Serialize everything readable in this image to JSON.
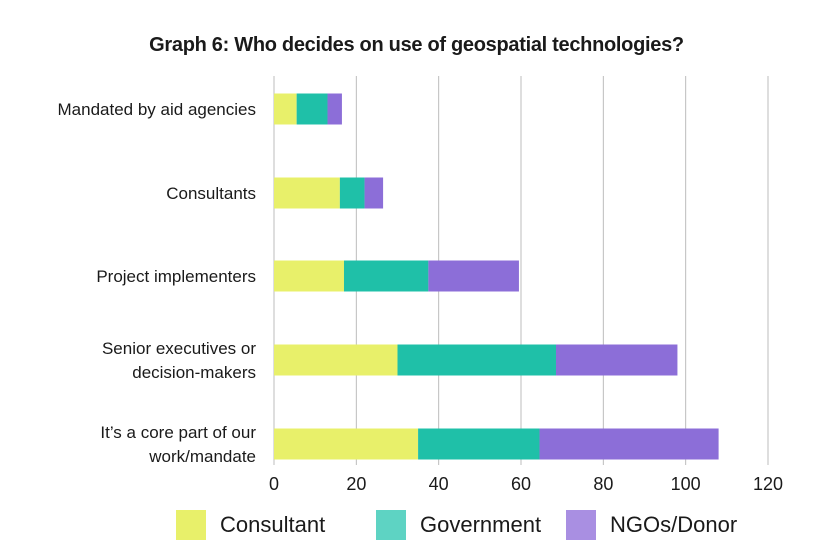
{
  "chart_data": {
    "type": "bar",
    "orientation": "horizontal",
    "stacked": true,
    "title": "Graph 6: Who decides on use of geospatial technologies?",
    "categories": [
      [
        "Mandated by aid agencies"
      ],
      [
        "Consultants"
      ],
      [
        "Project implementers"
      ],
      [
        "Senior executives or",
        "decision-makers"
      ],
      [
        "It’s a core part of our",
        "work/mandate"
      ]
    ],
    "series": [
      {
        "name": "Consultant",
        "color": "#e8f06a",
        "values": [
          5.5,
          16,
          17,
          30,
          35
        ]
      },
      {
        "name": "Government",
        "color": "#1fc0a8",
        "values": [
          7.5,
          6,
          20.5,
          38.5,
          29.5
        ]
      },
      {
        "name": "NGOs/Donor",
        "color": "#8c6ed8",
        "values": [
          3.5,
          4.5,
          22,
          29.5,
          43.5
        ]
      }
    ],
    "xlim": [
      0,
      120
    ],
    "xticks": [
      0,
      20,
      40,
      60,
      80,
      100,
      120
    ],
    "grid": "vertical",
    "legend_position": "bottom"
  },
  "legend_swatch_colors": [
    "#e8f06a",
    "#5ed3c3",
    "#a98fe2"
  ]
}
